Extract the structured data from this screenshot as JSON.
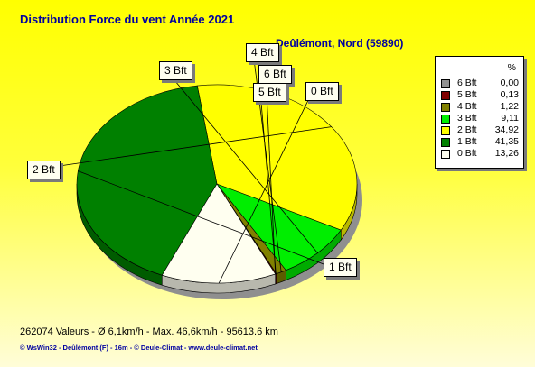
{
  "title": "Distribution Force du vent  Année 2021",
  "subtitle": "Deûlémont, Nord (59890)",
  "legend": {
    "header": "%"
  },
  "stats": "262074 Valeurs   -   Ø 6,1km/h  -  Max. 46,6km/h   -   95613.6 km",
  "footer": "© WsWin32  -  Deûlémont (F) - 16m  -  © Deule-Climat - www.deule-climat.net",
  "chart_data": {
    "type": "pie",
    "title": "Distribution Force du vent  Année 2021",
    "subtitle": "Deûlémont, Nord (59890)",
    "legend_position": "top-right",
    "slices": [
      {
        "label": "6 Bft",
        "value": 0.0,
        "value_text": "0,00",
        "color": "#909090"
      },
      {
        "label": "5 Bft",
        "value": 0.13,
        "value_text": "0,13",
        "color": "#800000"
      },
      {
        "label": "4 Bft",
        "value": 1.22,
        "value_text": "1,22",
        "color": "#808000"
      },
      {
        "label": "3 Bft",
        "value": 9.11,
        "value_text": "9,11",
        "color": "#00ee00"
      },
      {
        "label": "2 Bft",
        "value": 34.92,
        "value_text": "34,92",
        "color": "#ffff00"
      },
      {
        "label": "1 Bft",
        "value": 41.35,
        "value_text": "41,35",
        "color": "#008000"
      },
      {
        "label": "0 Bft",
        "value": 13.26,
        "value_text": "13,26",
        "color": "#fffff0"
      }
    ]
  }
}
